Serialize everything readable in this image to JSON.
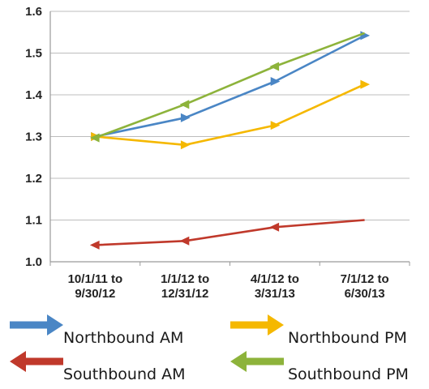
{
  "chart_data": {
    "type": "line",
    "categories": [
      [
        "10/1/11 to",
        "9/30/12"
      ],
      [
        "1/1/12 to",
        "12/31/12"
      ],
      [
        "4/1/12 to",
        "3/31/13"
      ],
      [
        "7/1/12 to",
        "6/30/13"
      ]
    ],
    "y_ticks": [
      "1.0",
      "1.1",
      "1.2",
      "1.3",
      "1.4",
      "1.5",
      "1.6"
    ],
    "ylim": [
      1.0,
      1.6
    ],
    "grid": true,
    "legend_position": "bottom",
    "series": [
      {
        "name": "Northbound AM",
        "color": "#4a86c5",
        "marker": "arrow-right",
        "values": [
          1.3,
          1.345,
          1.432,
          1.542
        ]
      },
      {
        "name": "Northbound PM",
        "color": "#f5b800",
        "marker": "arrow-right",
        "values": [
          1.3,
          1.28,
          1.327,
          1.425
        ]
      },
      {
        "name": "Southbound AM",
        "color": "#c0392b",
        "marker": "arrow-left",
        "values": [
          1.04,
          1.05,
          1.083,
          1.1
        ]
      },
      {
        "name": "Southbound PM",
        "color": "#8db33b",
        "marker": "arrow-left",
        "values": [
          1.297,
          1.377,
          1.468,
          1.548
        ]
      }
    ]
  }
}
